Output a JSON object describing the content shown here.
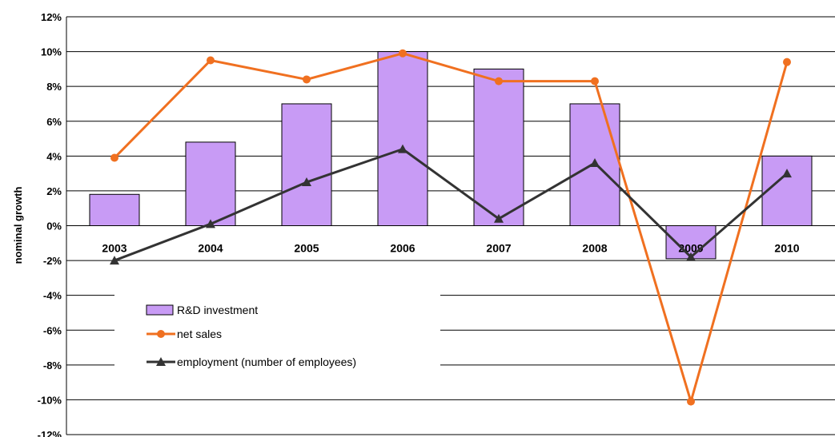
{
  "chart_data": {
    "type": "bar",
    "ylabel": "nominal growth",
    "xlabel": "",
    "title": "",
    "categories": [
      "2003",
      "2004",
      "2005",
      "2006",
      "2007",
      "2008",
      "2009",
      "2010"
    ],
    "ylim": [
      -12,
      12
    ],
    "yticks": [
      12,
      10,
      8,
      6,
      4,
      2,
      0,
      -2,
      -4,
      -6,
      -8,
      -10,
      -12
    ],
    "ytick_labels": [
      "12%",
      "10%",
      "8%",
      "6%",
      "4%",
      "2%",
      "0%",
      "-2%",
      "-4%",
      "-6%",
      "-8%",
      "-10%",
      "-12%"
    ],
    "grid": true,
    "legend_position": "bottom-left",
    "series": [
      {
        "name": "R&D investment",
        "type": "bar",
        "color": "#c89bf5",
        "values": [
          1.8,
          4.8,
          7.0,
          10.0,
          9.0,
          7.0,
          -1.9,
          4.0
        ]
      },
      {
        "name": "net sales",
        "type": "line",
        "marker": "circle",
        "color": "#f07020",
        "values": [
          3.9,
          9.5,
          8.4,
          9.9,
          8.3,
          8.3,
          -10.1,
          9.4
        ]
      },
      {
        "name": "employment (number of employees)",
        "type": "line",
        "marker": "triangle",
        "color": "#333333",
        "values": [
          -2.0,
          0.1,
          2.5,
          4.4,
          0.4,
          3.6,
          -1.8,
          3.0
        ]
      }
    ]
  }
}
